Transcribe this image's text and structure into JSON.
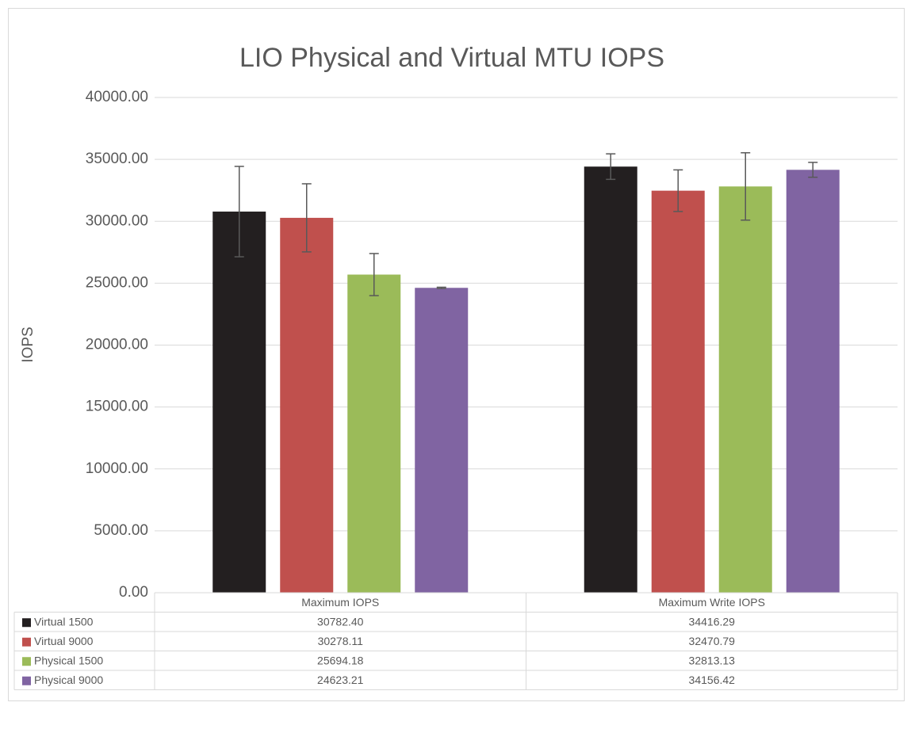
{
  "chart_data": {
    "type": "bar",
    "title": "LIO Physical and Virtual MTU IOPS",
    "y_label": "IOPS",
    "categories": [
      "Maximum IOPS",
      "Maximum Write IOPS"
    ],
    "series": [
      {
        "name": "Virtual 1500",
        "color": "#231f20",
        "values": [
          30782.4,
          34416.29
        ],
        "value_labels": [
          "30782.40",
          "34416.29"
        ],
        "errors": [
          3650,
          1030
        ]
      },
      {
        "name": "Virtual 9000",
        "color": "#c0504d",
        "values": [
          30278.11,
          32470.79
        ],
        "value_labels": [
          "30278.11",
          "32470.79"
        ],
        "errors": [
          2750,
          1680
        ]
      },
      {
        "name": "Physical 1500",
        "color": "#9bbb59",
        "values": [
          25694.18,
          32813.13
        ],
        "value_labels": [
          "25694.18",
          "32813.13"
        ],
        "errors": [
          1700,
          2720
        ]
      },
      {
        "name": "Physical 9000",
        "color": "#8064a2",
        "values": [
          24623.21,
          34156.42
        ],
        "value_labels": [
          "24623.21",
          "34156.42"
        ],
        "errors": [
          50,
          600
        ]
      }
    ],
    "ylim": [
      0,
      40000
    ],
    "yticks": [
      {
        "value": 0,
        "label": "0.00"
      },
      {
        "value": 5000,
        "label": "5000.00"
      },
      {
        "value": 10000,
        "label": "10000.00"
      },
      {
        "value": 15000,
        "label": "15000.00"
      },
      {
        "value": 20000,
        "label": "20000.00"
      },
      {
        "value": 25000,
        "label": "25000.00"
      },
      {
        "value": 30000,
        "label": "30000.00"
      },
      {
        "value": 35000,
        "label": "35000.00"
      },
      {
        "value": 40000,
        "label": "40000.00"
      }
    ],
    "grid": true,
    "error_bar_color": "#595959"
  }
}
